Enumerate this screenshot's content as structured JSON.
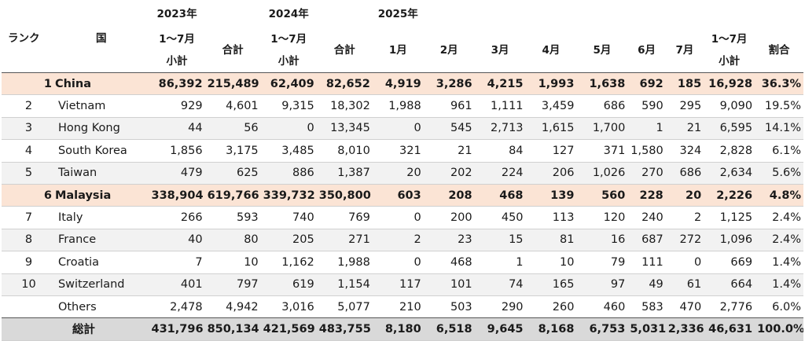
{
  "header": {
    "rank_label": "ランク",
    "country_label": "国",
    "year_2023": "2023年",
    "year_2024": "2024年",
    "year_2025": "2025年",
    "jan_jul_line1": "1～7月",
    "subtotal": "小計",
    "total": "合計",
    "months": [
      "1月",
      "2月",
      "3月",
      "4月",
      "5月",
      "6月",
      "7月"
    ],
    "share": "割合"
  },
  "rows": [
    {
      "rank": "1",
      "country": "China",
      "highlight": true,
      "values": [
        "86,392",
        "215,489",
        "62,409",
        "82,652",
        "4,919",
        "3,286",
        "4,215",
        "1,993",
        "1,638",
        "692",
        "185",
        "16,928",
        "36.3%"
      ]
    },
    {
      "rank": "2",
      "country": "Vietnam",
      "highlight": false,
      "values": [
        "929",
        "4,601",
        "9,315",
        "18,302",
        "1,988",
        "961",
        "1,111",
        "3,459",
        "686",
        "590",
        "295",
        "9,090",
        "19.5%"
      ]
    },
    {
      "rank": "3",
      "country": "Hong Kong",
      "highlight": false,
      "values": [
        "44",
        "56",
        "0",
        "13,345",
        "0",
        "545",
        "2,713",
        "1,615",
        "1,700",
        "1",
        "21",
        "6,595",
        "14.1%"
      ]
    },
    {
      "rank": "4",
      "country": "South Korea",
      "highlight": false,
      "values": [
        "1,856",
        "3,175",
        "3,485",
        "8,010",
        "321",
        "21",
        "84",
        "127",
        "371",
        "1,580",
        "324",
        "2,828",
        "6.1%"
      ]
    },
    {
      "rank": "5",
      "country": "Taiwan",
      "highlight": false,
      "values": [
        "479",
        "625",
        "886",
        "1,387",
        "20",
        "202",
        "224",
        "206",
        "1,026",
        "270",
        "686",
        "2,634",
        "5.6%"
      ]
    },
    {
      "rank": "6",
      "country": "Malaysia",
      "highlight": true,
      "values": [
        "338,904",
        "619,766",
        "339,732",
        "350,800",
        "603",
        "208",
        "468",
        "139",
        "560",
        "228",
        "20",
        "2,226",
        "4.8%"
      ]
    },
    {
      "rank": "7",
      "country": "Italy",
      "highlight": false,
      "values": [
        "266",
        "593",
        "740",
        "769",
        "0",
        "200",
        "450",
        "113",
        "120",
        "240",
        "2",
        "1,125",
        "2.4%"
      ]
    },
    {
      "rank": "8",
      "country": "France",
      "highlight": false,
      "values": [
        "40",
        "80",
        "205",
        "271",
        "2",
        "23",
        "15",
        "81",
        "16",
        "687",
        "272",
        "1,096",
        "2.4%"
      ]
    },
    {
      "rank": "9",
      "country": "Croatia",
      "highlight": false,
      "values": [
        "7",
        "10",
        "1,162",
        "1,988",
        "0",
        "468",
        "1",
        "10",
        "79",
        "111",
        "0",
        "669",
        "1.4%"
      ]
    },
    {
      "rank": "10",
      "country": "Switzerland",
      "highlight": false,
      "values": [
        "401",
        "797",
        "619",
        "1,154",
        "117",
        "101",
        "74",
        "165",
        "97",
        "49",
        "61",
        "664",
        "1.4%"
      ]
    },
    {
      "rank": "",
      "country": "Others",
      "highlight": false,
      "values": [
        "2,478",
        "4,942",
        "3,016",
        "5,077",
        "210",
        "503",
        "290",
        "260",
        "460",
        "583",
        "470",
        "2,776",
        "6.0%"
      ]
    }
  ],
  "total_row": {
    "label": "総計",
    "values": [
      "431,796",
      "850,134",
      "421,569",
      "483,755",
      "8,180",
      "6,518",
      "9,645",
      "8,168",
      "6,753",
      "5,031",
      "2,336",
      "46,631",
      "100.0%"
    ]
  },
  "colors": {
    "highlight_row": "#fbe4d5",
    "alt_row": "#f2f2f2",
    "total_row": "#d9d9d9"
  }
}
